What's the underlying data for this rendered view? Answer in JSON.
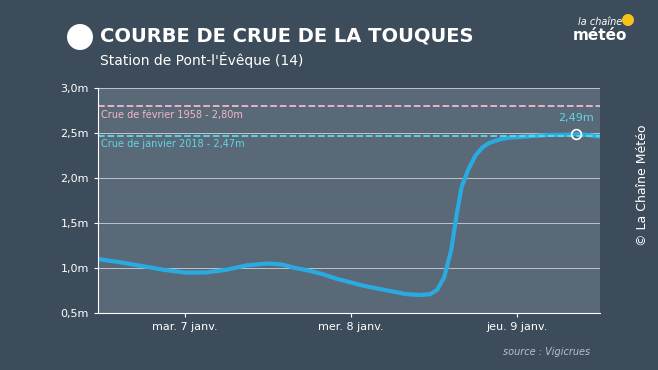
{
  "chart_data": {
    "type": "line",
    "title": "COURBE DE CRUE DE LA TOUQUES",
    "subtitle": "Station de Pont-l'Évêque (14)",
    "logo": [
      "la chaîne",
      "météo"
    ],
    "source": "source : Vigicrues",
    "credit": "© La Chaîne Météo",
    "x": [
      -12.5,
      -9,
      -6,
      -3,
      0,
      3,
      6,
      9,
      12,
      14,
      16,
      18,
      20,
      22,
      24,
      26,
      28,
      30,
      32,
      34,
      35.5,
      36.5,
      37.5,
      38.5,
      39.3,
      40,
      41,
      42,
      43,
      44,
      45.5,
      47,
      49,
      51,
      53,
      55,
      56.5,
      58,
      60
    ],
    "series": [
      {
        "color": "#29abe2",
        "line_style": "solid",
        "values": [
          1.1,
          1.06,
          1.02,
          0.98,
          0.95,
          0.95,
          0.98,
          1.03,
          1.05,
          1.04,
          1.0,
          0.97,
          0.93,
          0.88,
          0.84,
          0.8,
          0.77,
          0.74,
          0.71,
          0.7,
          0.71,
          0.76,
          0.9,
          1.2,
          1.6,
          1.9,
          2.1,
          2.25,
          2.34,
          2.39,
          2.43,
          2.45,
          2.46,
          2.47,
          2.48,
          2.48,
          2.49,
          2.48,
          2.46
        ]
      }
    ],
    "xlim": [
      -12.5,
      60
    ],
    "xticks": [
      {
        "value": 0,
        "label": "mar. 7 janv."
      },
      {
        "value": 24,
        "label": "mer. 8 janv."
      },
      {
        "value": 48,
        "label": "jeu. 9 janv."
      }
    ],
    "ylim": [
      0.5,
      3.0
    ],
    "yticks": [
      {
        "value": 0.5,
        "label": "0,5m"
      },
      {
        "value": 1.0,
        "label": "1,0m"
      },
      {
        "value": 1.5,
        "label": "1,5m"
      },
      {
        "value": 2.0,
        "label": "2,0m"
      },
      {
        "value": 2.5,
        "label": "2,5m"
      },
      {
        "value": 3.0,
        "label": "3,0m"
      }
    ],
    "grid": true,
    "reference_lines": [
      {
        "value": 2.8,
        "label": "Crue de février 1958 - 2,80m",
        "color": "#f4b8c8",
        "line_style": "dashed"
      },
      {
        "value": 2.47,
        "label": "Crue de janvier 2018 - 2,47m",
        "color": "#5fd6e8",
        "line_style": "dashed"
      }
    ],
    "annotations": [
      {
        "x": 56.5,
        "y": 2.49,
        "label": "2,49m",
        "color": "#5fd6e8"
      }
    ]
  }
}
